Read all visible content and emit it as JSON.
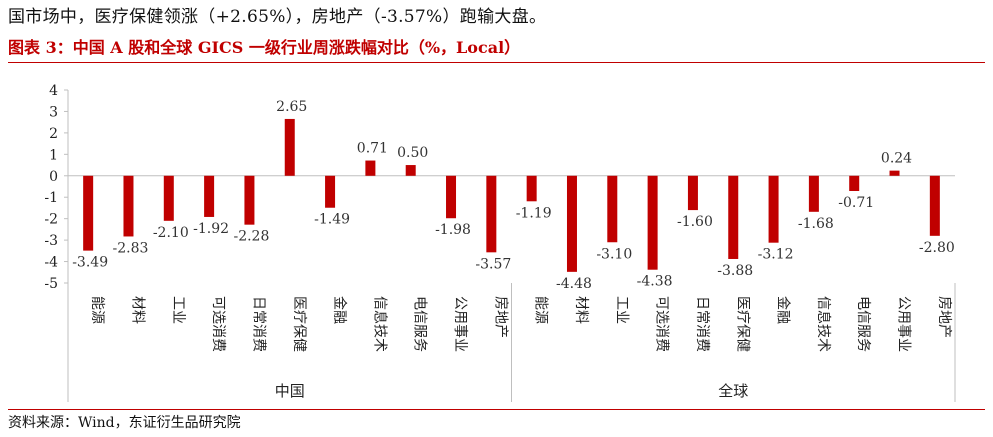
{
  "headline": "国市场中，医疗保健领涨（+2.65%），房地产（-3.57%）跑输大盘。",
  "chart_data": {
    "type": "bar",
    "title": "图表 3：中国 A 股和全球 GICS 一级行业周涨跌幅对比（%，Local）",
    "ylim": [
      -5,
      4
    ],
    "yticks": [
      4,
      3,
      2,
      1,
      0,
      -1,
      -2,
      -3,
      -4,
      -5
    ],
    "groups": [
      {
        "name": "中国",
        "categories": [
          "能源",
          "材料",
          "工业",
          "可选消费",
          "日常消费",
          "医疗保健",
          "金融",
          "信息技术",
          "电信服务",
          "公用事业",
          "房地产"
        ],
        "values": [
          -3.49,
          -2.83,
          -2.1,
          -1.92,
          -2.28,
          2.65,
          -1.49,
          0.71,
          0.5,
          -1.98,
          -3.57
        ],
        "labels": [
          "-3.49",
          "-2.83",
          "-2.10",
          "-1.92",
          "-2.28",
          "2.65",
          "-1.49",
          "0.71",
          "0.50",
          "-1.98",
          "-3.57"
        ]
      },
      {
        "name": "全球",
        "categories": [
          "能源",
          "材料",
          "工业",
          "可选消费",
          "日常消费",
          "医疗保健",
          "金融",
          "信息技术",
          "电信服务",
          "公用事业",
          "房地产"
        ],
        "values": [
          -1.19,
          -4.48,
          -3.1,
          -4.38,
          -1.6,
          -3.88,
          -3.12,
          -1.68,
          -0.71,
          0.24,
          -2.8
        ],
        "labels": [
          "-1.19",
          "-4.48",
          "-3.10",
          "-4.38",
          "-1.60",
          "-3.88",
          "-3.12",
          "-1.68",
          "-0.71",
          "0.24",
          "-2.80"
        ]
      }
    ],
    "bar_color": "#c00000",
    "grid": false
  },
  "source": "资料来源：Wind，东证衍生品研究院"
}
